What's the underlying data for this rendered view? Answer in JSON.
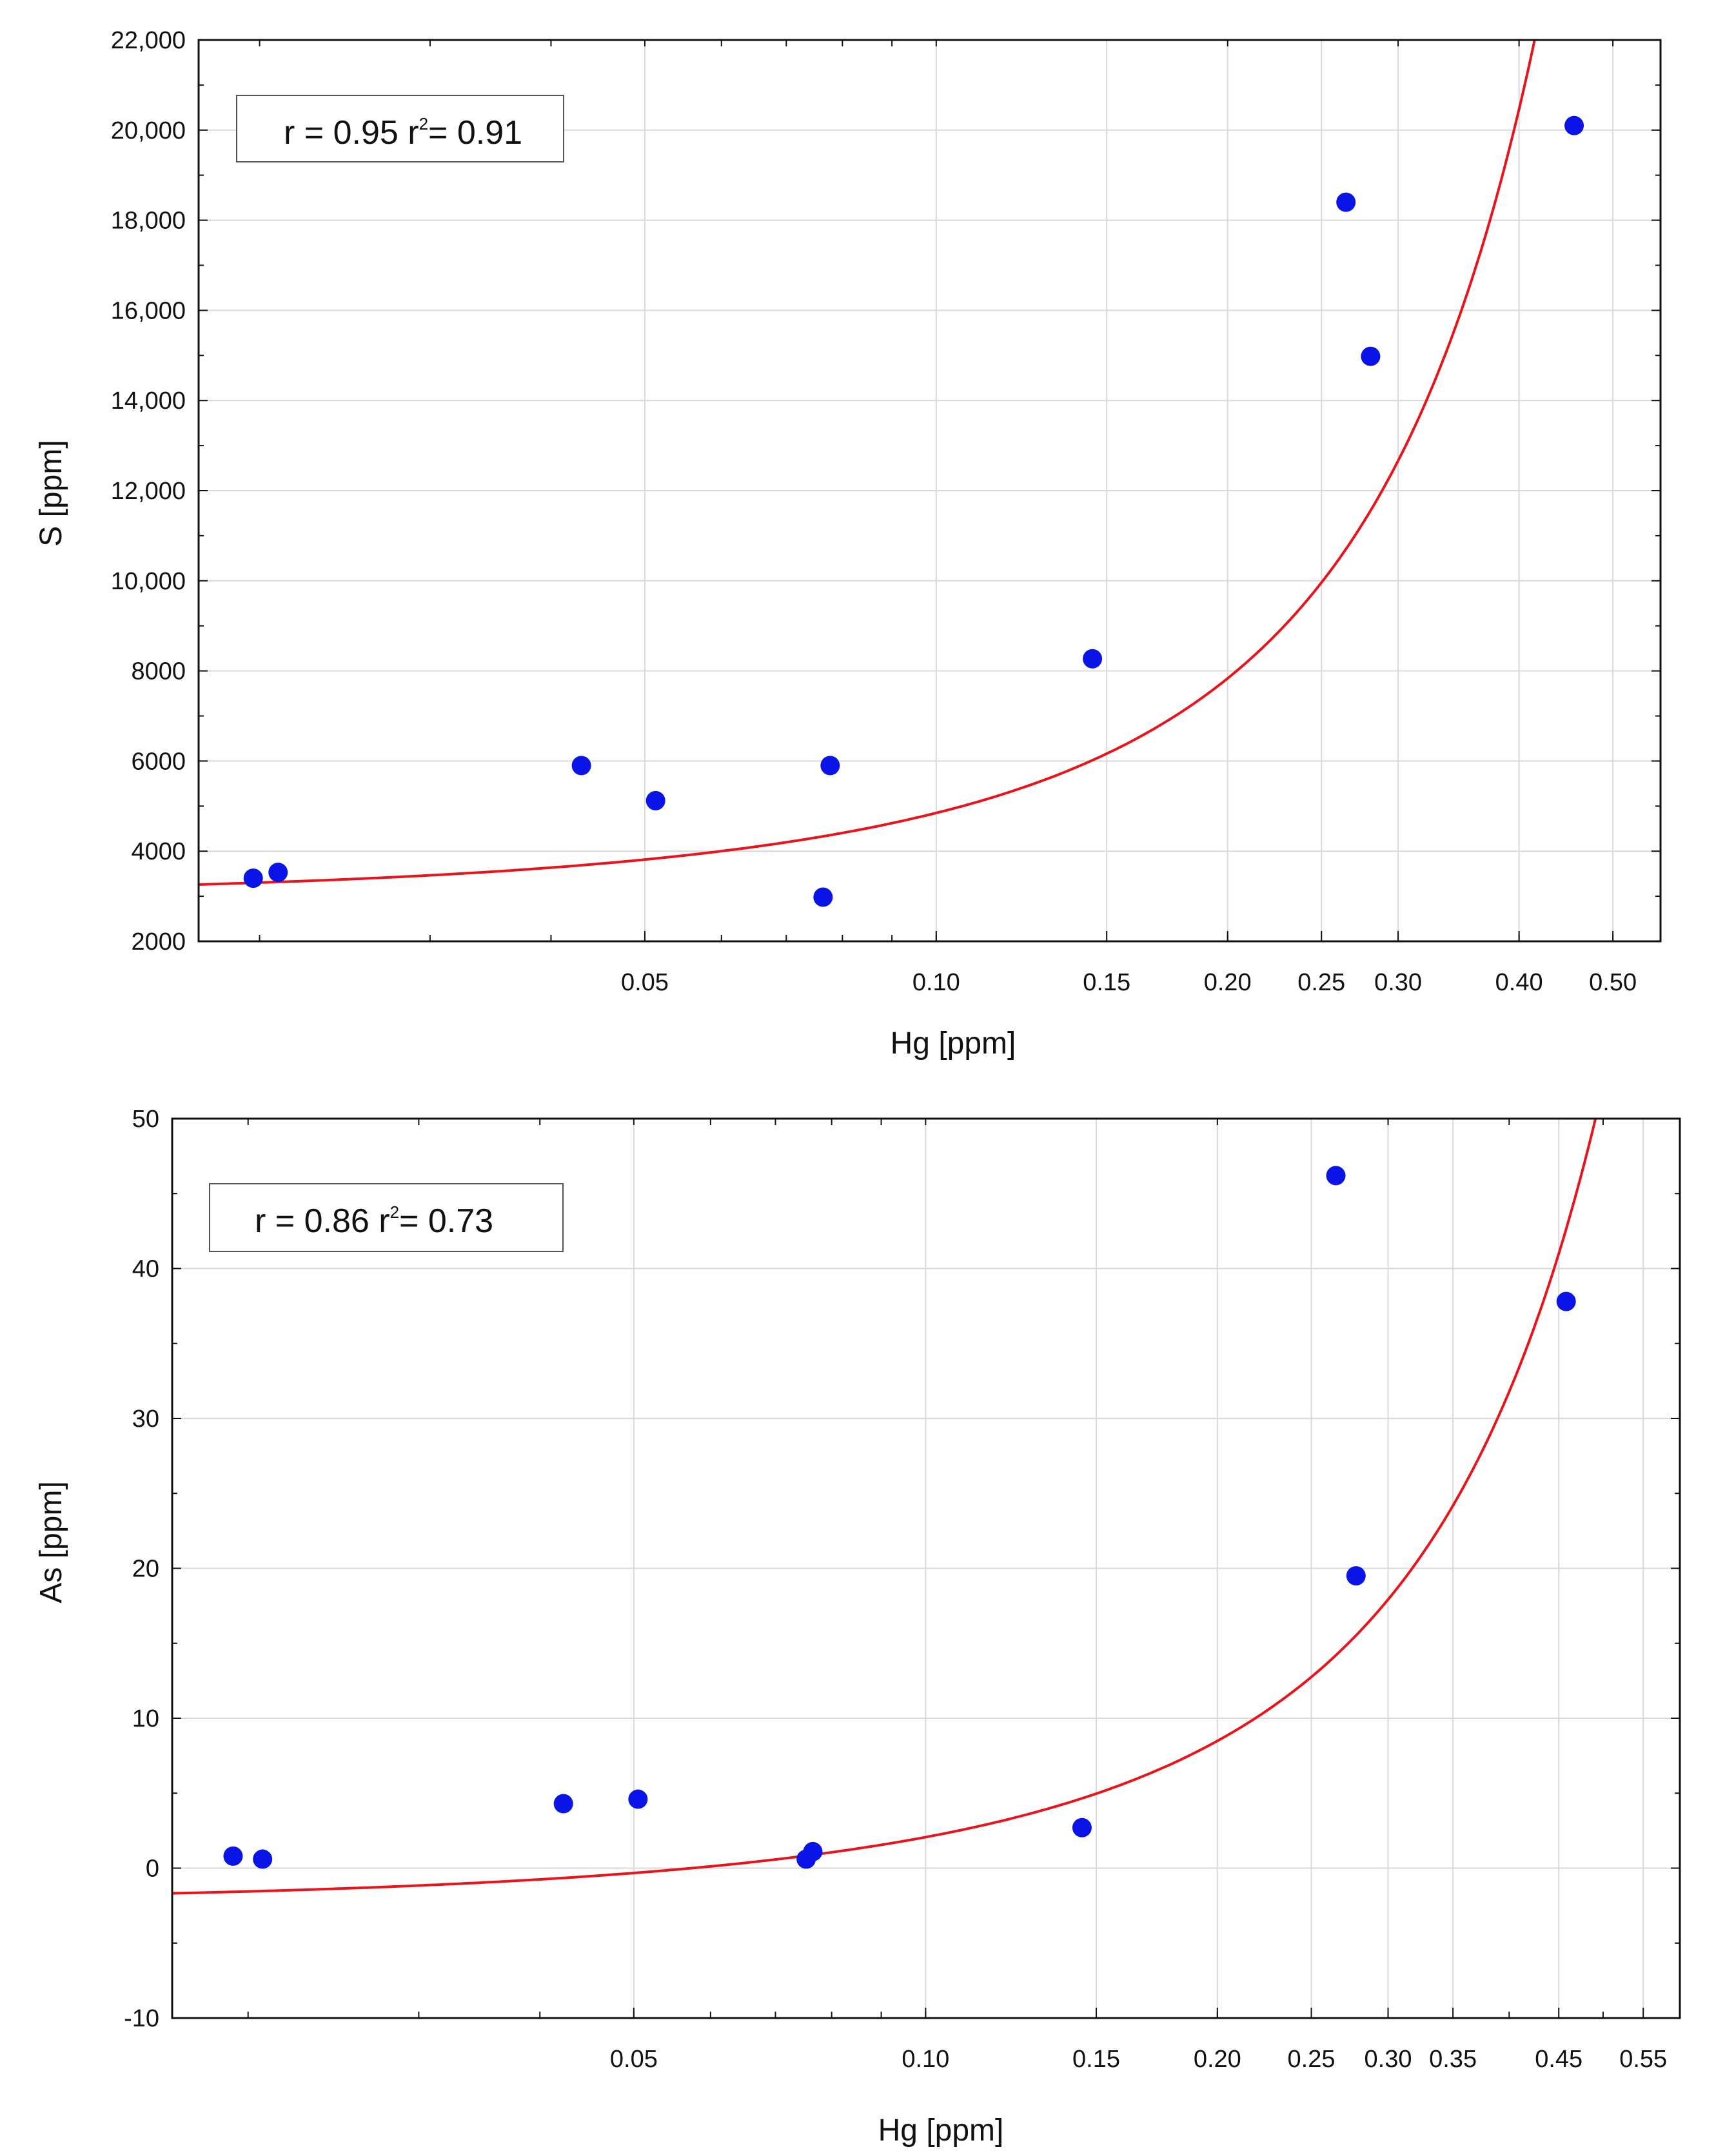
{
  "chart_data": [
    {
      "type": "scatter",
      "x_scale": "log",
      "xlabel": "Hg [ppm]",
      "ylabel": "S [ppm]",
      "xlim": [
        0.0173,
        0.56
      ],
      "ylim": [
        2000,
        22000
      ],
      "x_ticks": [
        0.05,
        0.1,
        0.15,
        0.2,
        0.25,
        0.3,
        0.4,
        0.5
      ],
      "x_tick_labels": [
        "0.05",
        "0.10",
        "0.15",
        "0.20",
        "0.25",
        "0.30",
        "0.40",
        "0.50"
      ],
      "y_ticks": [
        2000,
        4000,
        6000,
        8000,
        10000,
        12000,
        14000,
        16000,
        18000,
        20000,
        22000
      ],
      "y_tick_labels": [
        "2000",
        "4000",
        "6000",
        "8000",
        "10,000",
        "12,000",
        "14,000",
        "16,000",
        "18,000",
        "20,000",
        "22,000"
      ],
      "annotation": {
        "prefix": "r = 0.95 r",
        "sup": "2",
        "suffix": "= 0.91"
      },
      "points": {
        "x": [
          0.0197,
          0.0209,
          0.043,
          0.0513,
          0.0764,
          0.0777,
          0.145,
          0.265,
          0.281,
          0.456
        ],
        "y": [
          3400,
          3530,
          5900,
          5120,
          2980,
          5900,
          8270,
          18400,
          14980,
          20100
        ]
      },
      "fit": {
        "type": "exponential",
        "a": 3000,
        "b": 4.8
      }
    },
    {
      "type": "scatter",
      "x_scale": "log",
      "xlabel": "Hg [ppm]",
      "ylabel": "As [ppm]",
      "xlim": [
        0.0167,
        0.6
      ],
      "ylim": [
        -10,
        50
      ],
      "x_ticks": [
        0.05,
        0.1,
        0.15,
        0.2,
        0.25,
        0.3,
        0.35,
        0.45,
        0.55
      ],
      "x_tick_labels": [
        "0.05",
        "0.10",
        "0.15",
        "0.20",
        "0.25",
        "0.30",
        "0.35",
        "0.45",
        "0.55"
      ],
      "y_ticks": [
        -10,
        0,
        10,
        20,
        30,
        40,
        50
      ],
      "y_tick_labels": [
        "-10",
        "0",
        "10",
        "20",
        "30",
        "40",
        "50"
      ],
      "annotation": {
        "prefix": "r = 0.86 r",
        "sup": "2",
        "suffix": "= 0.73"
      },
      "points": {
        "x": [
          0.0193,
          0.0207,
          0.0423,
          0.0505,
          0.0753,
          0.0765,
          0.145,
          0.265,
          0.278,
          0.458
        ],
        "y": [
          0.8,
          0.6,
          4.3,
          4.6,
          0.6,
          1.1,
          2.7,
          46.2,
          19.5,
          37.8
        ]
      },
      "fit": {
        "type": "exponential",
        "a": -2.3,
        "b": 1.1,
        "c": 9.3
      }
    }
  ]
}
